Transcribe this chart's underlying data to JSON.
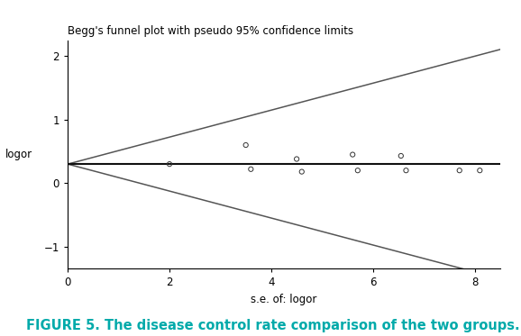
{
  "title": "Begg's funnel plot with pseudo 95% confidence limits",
  "xlabel": "s.e. of: logor",
  "ylabel": "logor",
  "xlim": [
    0,
    8.5
  ],
  "ylim": [
    -1.35,
    2.25
  ],
  "xticks": [
    0,
    2,
    4,
    6,
    8
  ],
  "yticks": [
    -1,
    0,
    1,
    2
  ],
  "pooled_logor": 0.3,
  "funnel_slope": 0.2125,
  "scatter_x": [
    2.0,
    3.5,
    3.6,
    4.5,
    4.6,
    5.6,
    5.7,
    6.55,
    6.65,
    7.7,
    8.1
  ],
  "scatter_y": [
    0.3,
    0.6,
    0.22,
    0.38,
    0.18,
    0.45,
    0.2,
    0.43,
    0.2,
    0.2,
    0.2
  ],
  "line_color": "#111111",
  "funnel_color": "#555555",
  "scatter_color": "#333333",
  "background_color": "#ffffff",
  "caption": "FIGURE 5. The disease control rate comparison of the two groups.",
  "caption_color": "#00AAAA",
  "title_fontsize": 8.5,
  "axis_label_fontsize": 8.5,
  "tick_fontsize": 8.5,
  "caption_fontsize": 10.5
}
